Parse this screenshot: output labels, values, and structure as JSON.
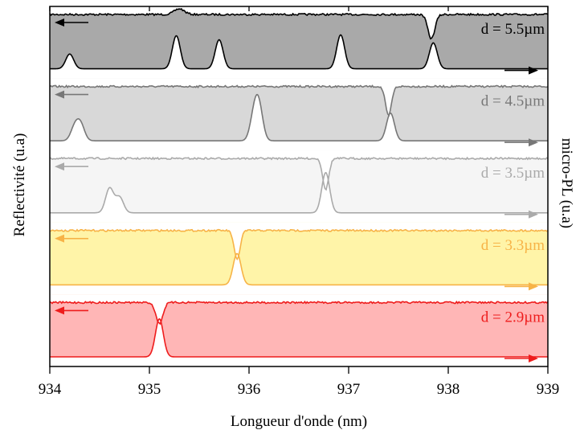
{
  "chart_data": {
    "type": "line",
    "xlabel": "Longueur d'onde (nm)",
    "ylabel_left": "Reflectivité (u.a)",
    "ylabel_right": "micro-PL (u.a)",
    "xlim": [
      934,
      939
    ],
    "x_ticks": [
      "934",
      "935",
      "936",
      "937",
      "938",
      "939"
    ],
    "panels": [
      {
        "label": "d = 5.5µm",
        "color": "#000000",
        "fill": "#a9a9a9",
        "reflectivity_dips": [
          {
            "x": 937.83,
            "depth": 0.75,
            "width": 0.035
          }
        ],
        "reflectivity_bumps": [
          {
            "x": 935.3,
            "depth": -0.35,
            "width": 0.05
          }
        ],
        "pl_peaks": [
          {
            "x": 934.2,
            "height": 0.33
          },
          {
            "x": 935.27,
            "height": 0.74
          },
          {
            "x": 935.7,
            "height": 0.65
          },
          {
            "x": 936.92,
            "height": 0.76
          },
          {
            "x": 937.85,
            "height": 0.58
          }
        ]
      },
      {
        "label": "d = 4.5µm",
        "color": "#777777",
        "fill": "#d8d8d8",
        "reflectivity_dips": [
          {
            "x": 937.4,
            "depth": 0.9,
            "width": 0.03
          }
        ],
        "pl_peaks": [
          {
            "x": 934.25,
            "height": 0.3
          },
          {
            "x": 934.31,
            "height": 0.35
          },
          {
            "x": 936.05,
            "height": 0.53
          },
          {
            "x": 936.1,
            "height": 0.72
          },
          {
            "x": 937.42,
            "height": 0.62
          }
        ]
      },
      {
        "label": "d = 3.5µm",
        "color": "#aaaaaa",
        "fill": "#f5f5f5",
        "reflectivity_dips": [
          {
            "x": 936.77,
            "depth": 0.95,
            "width": 0.03
          }
        ],
        "pl_peaks": [
          {
            "x": 934.6,
            "height": 0.55
          },
          {
            "x": 934.7,
            "height": 0.35
          },
          {
            "x": 936.77,
            "height": 0.9
          }
        ]
      },
      {
        "label": "d = 3.3µm",
        "color": "#f7b347",
        "fill": "#fff4a8",
        "reflectivity_dips": [
          {
            "x": 935.88,
            "depth": 0.9,
            "width": 0.03
          }
        ],
        "pl_peaks": [
          {
            "x": 935.88,
            "height": 0.7
          }
        ]
      },
      {
        "label": "d = 2.9µm",
        "color": "#ee1c1c",
        "fill": "#ffb6b6",
        "reflectivity_dips": [
          {
            "x": 935.1,
            "depth": 0.65,
            "width": 0.035
          }
        ],
        "pl_peaks": [
          {
            "x": 935.1,
            "height": 0.85
          }
        ]
      }
    ]
  }
}
